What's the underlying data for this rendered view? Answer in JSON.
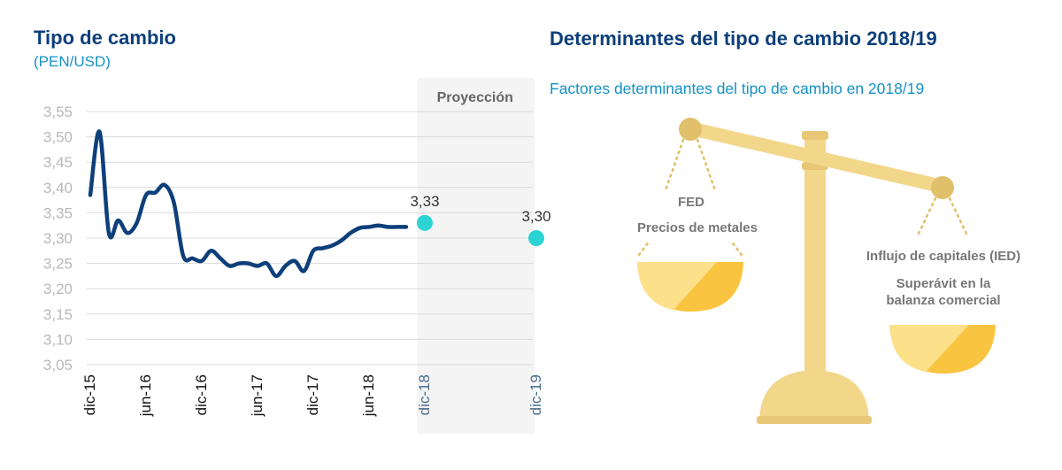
{
  "left_panel": {
    "title": "Tipo de cambio",
    "subtitle": "(PEN/USD)",
    "projection_label": "Proyección"
  },
  "right_panel": {
    "title": "Determinantes del tipo de cambio 2018/19",
    "subtitle": "Factores determinantes del tipo de cambio en 2018/19",
    "left_pan_labels": [
      "FED",
      "Precios de metales"
    ],
    "right_pan_labels": [
      "Influjo de capitales (IED)",
      "Superávit en la",
      "balanza comercial"
    ]
  },
  "colors": {
    "line": "#0d3f7a",
    "projection_point": "#2cd3d3",
    "projection_bg": "#f4f4f4",
    "grid": "#d9d9d9",
    "scale_gold": "#f2d68a",
    "scale_dark_gold": "#e0c06a",
    "pan_light": "#fde08a",
    "pan_dark": "#f9c43f"
  },
  "chart_data": {
    "type": "line",
    "title": "Tipo de cambio",
    "ylabel": "(PEN/USD)",
    "ylim": [
      3.05,
      3.55
    ],
    "yticks": [
      "3,05",
      "3,10",
      "3,15",
      "3,20",
      "3,25",
      "3,30",
      "3,35",
      "3,40",
      "3,45",
      "3,50",
      "3,55"
    ],
    "x_tick_labels": [
      "dic-15",
      "jun-16",
      "dic-16",
      "jun-17",
      "dic-17",
      "jun-18",
      "dic-18",
      "dic-19"
    ],
    "x_tick_positions": [
      0,
      6,
      12,
      18,
      24,
      30,
      36,
      48
    ],
    "projection_start": 35,
    "series": [
      {
        "name": "",
        "x": [
          0,
          1,
          2,
          3,
          4,
          5,
          6,
          7,
          8,
          9,
          10,
          11,
          12,
          13,
          14,
          15,
          16,
          17,
          18,
          19,
          20,
          21,
          22,
          23,
          24,
          25,
          26,
          27,
          28,
          29,
          30,
          31,
          32,
          33,
          34
        ],
        "values": [
          3.385,
          3.51,
          3.31,
          3.335,
          3.31,
          3.33,
          3.385,
          3.39,
          3.405,
          3.37,
          3.265,
          3.26,
          3.255,
          3.275,
          3.26,
          3.245,
          3.25,
          3.25,
          3.245,
          3.25,
          3.225,
          3.245,
          3.255,
          3.235,
          3.275,
          3.28,
          3.285,
          3.295,
          3.31,
          3.32,
          3.322,
          3.325,
          3.322,
          3.322,
          3.322
        ]
      }
    ],
    "projection": [
      {
        "x": 36,
        "value": 3.33,
        "label": "3,33"
      },
      {
        "x": 48,
        "value": 3.3,
        "label": "3,30"
      }
    ]
  }
}
